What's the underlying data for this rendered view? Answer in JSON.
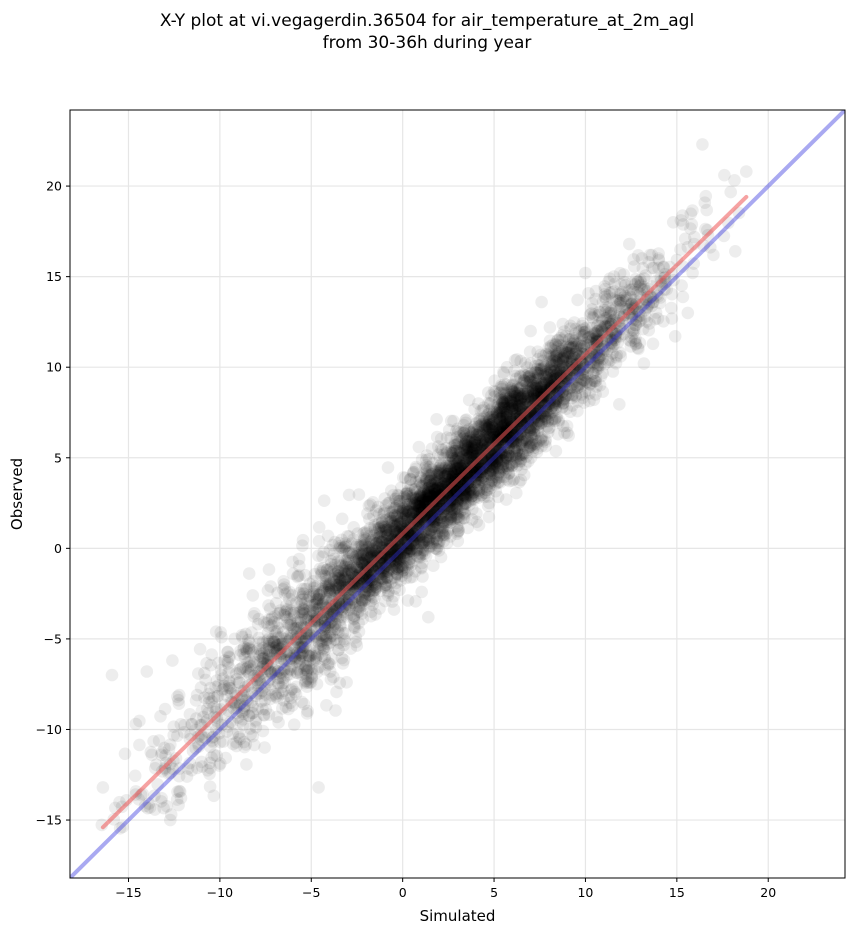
{
  "chart_data": {
    "type": "scatter",
    "title_lines": [
      "X-Y plot at vi.vegagerdin.36504 for air_temperature_at_2m_agl",
      "from 30-36h during year"
    ],
    "xlabel": "Simulated",
    "ylabel": "Observed",
    "xlim": [
      -18.2,
      24.2
    ],
    "ylim": [
      -18.2,
      24.2
    ],
    "x_ticks": [
      -15,
      -10,
      -5,
      0,
      5,
      10,
      15,
      20
    ],
    "y_ticks": [
      -15,
      -10,
      -5,
      0,
      5,
      10,
      15,
      20
    ],
    "x_tick_labels": [
      "−15",
      "−10",
      "−5",
      "0",
      "5",
      "10",
      "15",
      "20"
    ],
    "y_tick_labels": [
      "−15",
      "−10",
      "−5",
      "0",
      "5",
      "10",
      "15",
      "20"
    ],
    "grid": true,
    "point_color": "#000000",
    "point_alpha": 0.07,
    "identity_line": {
      "color": "#3333dd",
      "x": [
        -18.2,
        24.2
      ],
      "y": [
        -18.2,
        24.2
      ]
    },
    "fit_line": {
      "color": "#ee5555",
      "x": [
        -16.4,
        18.8
      ],
      "y": [
        -15.4,
        19.4
      ]
    },
    "point_cloud": {
      "x_range": [
        -16.5,
        18.8
      ],
      "y_range": [
        -14.7,
        22.3
      ],
      "relation": "observed ≈ 0.985 × simulated + 0.8"
    },
    "points_sample": [
      [
        -16.4,
        -13.2
      ],
      [
        -15.9,
        -7.0
      ],
      [
        -14.6,
        -9.7
      ],
      [
        -14.0,
        -6.8
      ],
      [
        -13.2,
        -11.4
      ],
      [
        -12.6,
        -6.2
      ],
      [
        -11.8,
        -12.6
      ],
      [
        -11.0,
        -10.4
      ],
      [
        -10.2,
        -4.6
      ],
      [
        -9.6,
        -7.8
      ],
      [
        -8.8,
        -4.8
      ],
      [
        -8.2,
        -2.6
      ],
      [
        -7.6,
        -9.2
      ],
      [
        -6.8,
        -4.4
      ],
      [
        -6.0,
        -1.4
      ],
      [
        -5.4,
        -8.6
      ],
      [
        -4.6,
        -13.2
      ],
      [
        -4.0,
        -2.0
      ],
      [
        -3.2,
        -5.0
      ],
      [
        -2.4,
        -0.6
      ],
      [
        -1.6,
        1.8
      ],
      [
        -0.8,
        -2.6
      ],
      [
        0.0,
        0.6
      ],
      [
        0.6,
        4.2
      ],
      [
        1.4,
        -3.8
      ],
      [
        2.2,
        3.0
      ],
      [
        3.0,
        6.6
      ],
      [
        3.8,
        1.6
      ],
      [
        4.6,
        5.2
      ],
      [
        5.4,
        9.0
      ],
      [
        6.2,
        4.8
      ],
      [
        7.0,
        12.0
      ],
      [
        7.6,
        13.6
      ],
      [
        8.4,
        7.2
      ],
      [
        9.2,
        10.6
      ],
      [
        10.0,
        15.2
      ],
      [
        10.8,
        9.0
      ],
      [
        11.6,
        14.6
      ],
      [
        12.4,
        16.8
      ],
      [
        13.2,
        10.2
      ],
      [
        14.0,
        16.0
      ],
      [
        14.8,
        18.0
      ],
      [
        15.6,
        13.0
      ],
      [
        16.4,
        22.3
      ],
      [
        17.0,
        16.2
      ],
      [
        17.6,
        20.6
      ],
      [
        18.2,
        16.4
      ],
      [
        18.8,
        20.8
      ]
    ]
  }
}
